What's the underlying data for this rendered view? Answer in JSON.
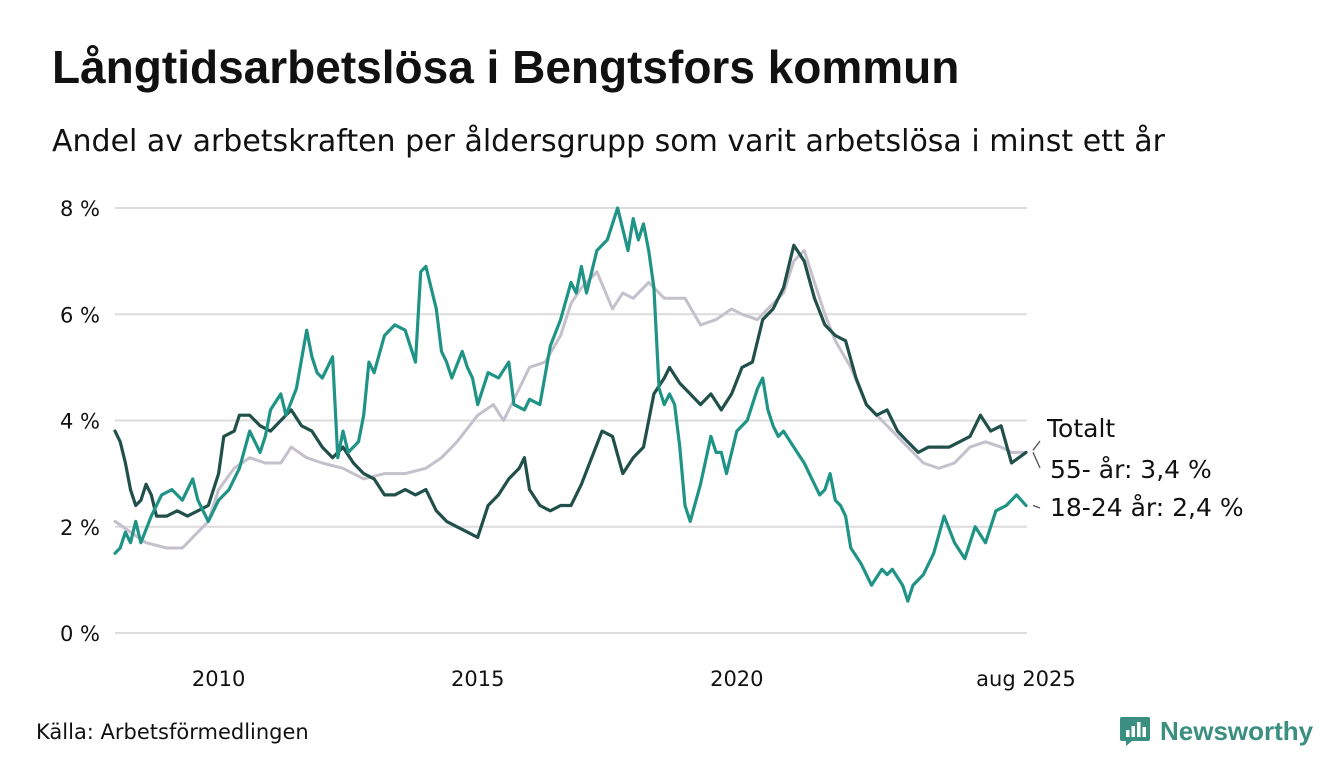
{
  "title": "Långtidsarbetslösa i Bengtsfors kommun",
  "subtitle": "Andel av arbetskraften per åldersgrupp som varit arbetslösa i minst ett år",
  "source": "Källa: Arbetsförmedlingen",
  "brand": {
    "name": "Newsworthy",
    "icon": "newsworthy-logo-icon"
  },
  "colors": {
    "total": "#c4c0cc",
    "age55": "#214f49",
    "age18_24": "#1f9486",
    "grid": "#dcdcdc",
    "brand": "#3b8f80"
  },
  "chart_data": {
    "type": "line",
    "x_unit": "year",
    "xlim": [
      2008.0,
      2025.6
    ],
    "ylim": [
      0,
      8
    ],
    "y_ticks": [
      0,
      2,
      4,
      6,
      8
    ],
    "y_tick_labels": [
      "0 %",
      "2 %",
      "4 %",
      "6 %",
      "8 %"
    ],
    "x_ticks": [
      2010,
      2015,
      2020,
      2025.58
    ],
    "x_tick_labels": [
      "2010",
      "2015",
      "2020",
      "aug 2025"
    ],
    "grid": "horizontal",
    "series": [
      {
        "name": "Totalt",
        "label": "Totalt",
        "color": "#c4c0cc",
        "points": [
          [
            2008.0,
            2.1
          ],
          [
            2008.3,
            1.9
          ],
          [
            2008.6,
            1.7
          ],
          [
            2009.0,
            1.6
          ],
          [
            2009.3,
            1.6
          ],
          [
            2009.5,
            1.8
          ],
          [
            2009.8,
            2.1
          ],
          [
            2010.0,
            2.7
          ],
          [
            2010.3,
            3.1
          ],
          [
            2010.6,
            3.3
          ],
          [
            2010.9,
            3.2
          ],
          [
            2011.2,
            3.2
          ],
          [
            2011.4,
            3.5
          ],
          [
            2011.7,
            3.3
          ],
          [
            2012.0,
            3.2
          ],
          [
            2012.4,
            3.1
          ],
          [
            2012.8,
            2.9
          ],
          [
            2013.2,
            3.0
          ],
          [
            2013.6,
            3.0
          ],
          [
            2014.0,
            3.1
          ],
          [
            2014.3,
            3.3
          ],
          [
            2014.6,
            3.6
          ],
          [
            2015.0,
            4.1
          ],
          [
            2015.3,
            4.3
          ],
          [
            2015.5,
            4.0
          ],
          [
            2015.8,
            4.6
          ],
          [
            2016.0,
            5.0
          ],
          [
            2016.3,
            5.1
          ],
          [
            2016.6,
            5.6
          ],
          [
            2016.8,
            6.2
          ],
          [
            2017.0,
            6.5
          ],
          [
            2017.3,
            6.8
          ],
          [
            2017.6,
            6.1
          ],
          [
            2017.8,
            6.4
          ],
          [
            2018.0,
            6.3
          ],
          [
            2018.3,
            6.6
          ],
          [
            2018.6,
            6.3
          ],
          [
            2019.0,
            6.3
          ],
          [
            2019.3,
            5.8
          ],
          [
            2019.6,
            5.9
          ],
          [
            2019.9,
            6.1
          ],
          [
            2020.1,
            6.0
          ],
          [
            2020.4,
            5.9
          ],
          [
            2020.7,
            6.2
          ],
          [
            2020.9,
            6.4
          ],
          [
            2021.1,
            7.0
          ],
          [
            2021.3,
            7.2
          ],
          [
            2021.5,
            6.6
          ],
          [
            2021.7,
            6.0
          ],
          [
            2021.9,
            5.5
          ],
          [
            2022.2,
            5.0
          ],
          [
            2022.5,
            4.3
          ],
          [
            2022.8,
            4.0
          ],
          [
            2023.0,
            3.8
          ],
          [
            2023.3,
            3.5
          ],
          [
            2023.6,
            3.2
          ],
          [
            2023.9,
            3.1
          ],
          [
            2024.2,
            3.2
          ],
          [
            2024.5,
            3.5
          ],
          [
            2024.8,
            3.6
          ],
          [
            2025.1,
            3.5
          ],
          [
            2025.3,
            3.4
          ],
          [
            2025.58,
            3.4
          ]
        ]
      },
      {
        "name": "55- år",
        "label": "55- år: 3,4 %",
        "color": "#214f49",
        "points": [
          [
            2008.0,
            3.8
          ],
          [
            2008.1,
            3.6
          ],
          [
            2008.2,
            3.2
          ],
          [
            2008.3,
            2.7
          ],
          [
            2008.4,
            2.4
          ],
          [
            2008.5,
            2.5
          ],
          [
            2008.6,
            2.8
          ],
          [
            2008.7,
            2.6
          ],
          [
            2008.8,
            2.2
          ],
          [
            2009.0,
            2.2
          ],
          [
            2009.2,
            2.3
          ],
          [
            2009.4,
            2.2
          ],
          [
            2009.6,
            2.3
          ],
          [
            2009.8,
            2.4
          ],
          [
            2010.0,
            3.0
          ],
          [
            2010.1,
            3.7
          ],
          [
            2010.3,
            3.8
          ],
          [
            2010.4,
            4.1
          ],
          [
            2010.6,
            4.1
          ],
          [
            2010.8,
            3.9
          ],
          [
            2011.0,
            3.8
          ],
          [
            2011.2,
            4.0
          ],
          [
            2011.4,
            4.2
          ],
          [
            2011.6,
            3.9
          ],
          [
            2011.8,
            3.8
          ],
          [
            2012.0,
            3.5
          ],
          [
            2012.2,
            3.3
          ],
          [
            2012.4,
            3.5
          ],
          [
            2012.6,
            3.2
          ],
          [
            2012.8,
            3.0
          ],
          [
            2013.0,
            2.9
          ],
          [
            2013.2,
            2.6
          ],
          [
            2013.4,
            2.6
          ],
          [
            2013.6,
            2.7
          ],
          [
            2013.8,
            2.6
          ],
          [
            2014.0,
            2.7
          ],
          [
            2014.2,
            2.3
          ],
          [
            2014.4,
            2.1
          ],
          [
            2014.6,
            2.0
          ],
          [
            2014.8,
            1.9
          ],
          [
            2015.0,
            1.8
          ],
          [
            2015.2,
            2.4
          ],
          [
            2015.4,
            2.6
          ],
          [
            2015.6,
            2.9
          ],
          [
            2015.8,
            3.1
          ],
          [
            2015.9,
            3.3
          ],
          [
            2016.0,
            2.7
          ],
          [
            2016.2,
            2.4
          ],
          [
            2016.4,
            2.3
          ],
          [
            2016.6,
            2.4
          ],
          [
            2016.8,
            2.4
          ],
          [
            2017.0,
            2.8
          ],
          [
            2017.2,
            3.3
          ],
          [
            2017.4,
            3.8
          ],
          [
            2017.6,
            3.7
          ],
          [
            2017.8,
            3.0
          ],
          [
            2018.0,
            3.3
          ],
          [
            2018.2,
            3.5
          ],
          [
            2018.4,
            4.5
          ],
          [
            2018.6,
            4.8
          ],
          [
            2018.7,
            5.0
          ],
          [
            2018.9,
            4.7
          ],
          [
            2019.1,
            4.5
          ],
          [
            2019.3,
            4.3
          ],
          [
            2019.5,
            4.5
          ],
          [
            2019.7,
            4.2
          ],
          [
            2019.9,
            4.5
          ],
          [
            2020.1,
            5.0
          ],
          [
            2020.3,
            5.1
          ],
          [
            2020.5,
            5.9
          ],
          [
            2020.7,
            6.1
          ],
          [
            2020.9,
            6.5
          ],
          [
            2021.1,
            7.3
          ],
          [
            2021.3,
            7.0
          ],
          [
            2021.5,
            6.3
          ],
          [
            2021.7,
            5.8
          ],
          [
            2021.9,
            5.6
          ],
          [
            2022.1,
            5.5
          ],
          [
            2022.3,
            4.8
          ],
          [
            2022.5,
            4.3
          ],
          [
            2022.7,
            4.1
          ],
          [
            2022.9,
            4.2
          ],
          [
            2023.1,
            3.8
          ],
          [
            2023.3,
            3.6
          ],
          [
            2023.5,
            3.4
          ],
          [
            2023.7,
            3.5
          ],
          [
            2023.9,
            3.5
          ],
          [
            2024.1,
            3.5
          ],
          [
            2024.3,
            3.6
          ],
          [
            2024.5,
            3.7
          ],
          [
            2024.7,
            4.1
          ],
          [
            2024.9,
            3.8
          ],
          [
            2025.1,
            3.9
          ],
          [
            2025.3,
            3.2
          ],
          [
            2025.58,
            3.4
          ]
        ]
      },
      {
        "name": "18-24 år",
        "label": "18-24 år: 2,4 %",
        "color": "#1f9486",
        "points": [
          [
            2008.0,
            1.5
          ],
          [
            2008.1,
            1.6
          ],
          [
            2008.2,
            1.9
          ],
          [
            2008.3,
            1.7
          ],
          [
            2008.4,
            2.1
          ],
          [
            2008.5,
            1.7
          ],
          [
            2008.7,
            2.2
          ],
          [
            2008.9,
            2.6
          ],
          [
            2009.1,
            2.7
          ],
          [
            2009.3,
            2.5
          ],
          [
            2009.5,
            2.9
          ],
          [
            2009.6,
            2.5
          ],
          [
            2009.8,
            2.1
          ],
          [
            2010.0,
            2.5
          ],
          [
            2010.2,
            2.7
          ],
          [
            2010.4,
            3.1
          ],
          [
            2010.6,
            3.8
          ],
          [
            2010.8,
            3.4
          ],
          [
            2010.9,
            3.7
          ],
          [
            2011.0,
            4.2
          ],
          [
            2011.2,
            4.5
          ],
          [
            2011.3,
            4.1
          ],
          [
            2011.5,
            4.6
          ],
          [
            2011.7,
            5.7
          ],
          [
            2011.8,
            5.2
          ],
          [
            2011.9,
            4.9
          ],
          [
            2012.0,
            4.8
          ],
          [
            2012.2,
            5.2
          ],
          [
            2012.3,
            3.3
          ],
          [
            2012.4,
            3.8
          ],
          [
            2012.5,
            3.4
          ],
          [
            2012.7,
            3.6
          ],
          [
            2012.8,
            4.1
          ],
          [
            2012.9,
            5.1
          ],
          [
            2013.0,
            4.9
          ],
          [
            2013.2,
            5.6
          ],
          [
            2013.4,
            5.8
          ],
          [
            2013.6,
            5.7
          ],
          [
            2013.8,
            5.1
          ],
          [
            2013.9,
            6.8
          ],
          [
            2014.0,
            6.9
          ],
          [
            2014.1,
            6.5
          ],
          [
            2014.2,
            6.1
          ],
          [
            2014.3,
            5.3
          ],
          [
            2014.4,
            5.1
          ],
          [
            2014.5,
            4.8
          ],
          [
            2014.7,
            5.3
          ],
          [
            2014.8,
            5.0
          ],
          [
            2014.9,
            4.8
          ],
          [
            2015.0,
            4.3
          ],
          [
            2015.2,
            4.9
          ],
          [
            2015.4,
            4.8
          ],
          [
            2015.6,
            5.1
          ],
          [
            2015.7,
            4.3
          ],
          [
            2015.9,
            4.2
          ],
          [
            2016.0,
            4.4
          ],
          [
            2016.2,
            4.3
          ],
          [
            2016.4,
            5.4
          ],
          [
            2016.6,
            5.9
          ],
          [
            2016.8,
            6.6
          ],
          [
            2016.9,
            6.4
          ],
          [
            2017.0,
            6.9
          ],
          [
            2017.1,
            6.4
          ],
          [
            2017.3,
            7.2
          ],
          [
            2017.5,
            7.4
          ],
          [
            2017.7,
            8.0
          ],
          [
            2017.9,
            7.2
          ],
          [
            2018.0,
            7.8
          ],
          [
            2018.1,
            7.4
          ],
          [
            2018.2,
            7.7
          ],
          [
            2018.3,
            7.2
          ],
          [
            2018.4,
            6.5
          ],
          [
            2018.5,
            4.6
          ],
          [
            2018.6,
            4.3
          ],
          [
            2018.7,
            4.5
          ],
          [
            2018.8,
            4.3
          ],
          [
            2018.9,
            3.5
          ],
          [
            2019.0,
            2.4
          ],
          [
            2019.1,
            2.1
          ],
          [
            2019.3,
            2.8
          ],
          [
            2019.5,
            3.7
          ],
          [
            2019.6,
            3.4
          ],
          [
            2019.7,
            3.4
          ],
          [
            2019.8,
            3.0
          ],
          [
            2020.0,
            3.8
          ],
          [
            2020.2,
            4.0
          ],
          [
            2020.4,
            4.6
          ],
          [
            2020.5,
            4.8
          ],
          [
            2020.6,
            4.2
          ],
          [
            2020.7,
            3.9
          ],
          [
            2020.8,
            3.7
          ],
          [
            2020.9,
            3.8
          ],
          [
            2021.1,
            3.5
          ],
          [
            2021.3,
            3.2
          ],
          [
            2021.5,
            2.8
          ],
          [
            2021.6,
            2.6
          ],
          [
            2021.7,
            2.7
          ],
          [
            2021.8,
            3.0
          ],
          [
            2021.9,
            2.5
          ],
          [
            2022.0,
            2.4
          ],
          [
            2022.1,
            2.2
          ],
          [
            2022.2,
            1.6
          ],
          [
            2022.4,
            1.3
          ],
          [
            2022.6,
            0.9
          ],
          [
            2022.8,
            1.2
          ],
          [
            2022.9,
            1.1
          ],
          [
            2023.0,
            1.2
          ],
          [
            2023.2,
            0.9
          ],
          [
            2023.3,
            0.6
          ],
          [
            2023.4,
            0.9
          ],
          [
            2023.6,
            1.1
          ],
          [
            2023.8,
            1.5
          ],
          [
            2024.0,
            2.2
          ],
          [
            2024.2,
            1.7
          ],
          [
            2024.4,
            1.4
          ],
          [
            2024.6,
            2.0
          ],
          [
            2024.8,
            1.7
          ],
          [
            2025.0,
            2.3
          ],
          [
            2025.2,
            2.4
          ],
          [
            2025.4,
            2.6
          ],
          [
            2025.58,
            2.4
          ]
        ]
      }
    ]
  }
}
